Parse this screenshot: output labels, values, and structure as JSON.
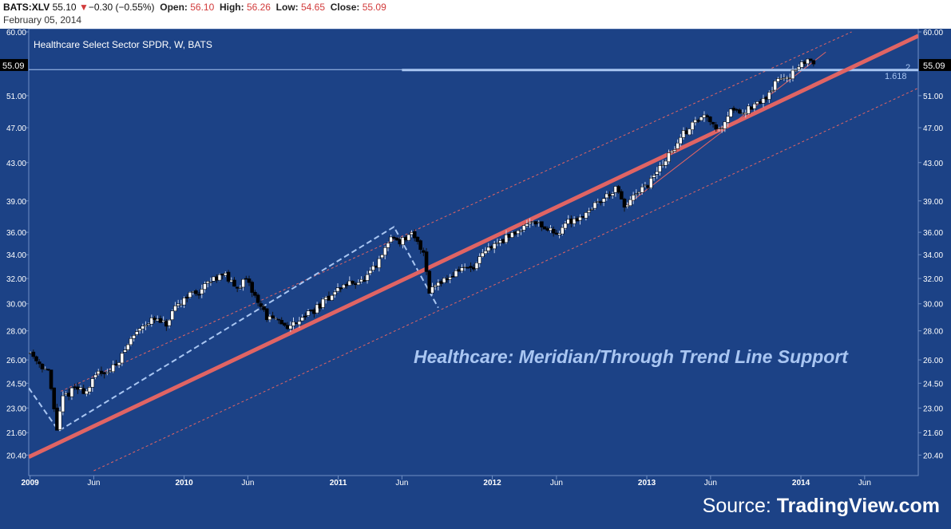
{
  "header": {
    "symbol": "BATS:XLV",
    "last": "55.10",
    "arrow": "▼",
    "change": "−0.30 (−0.55%)",
    "open_label": "Open:",
    "open": "56.10",
    "high_label": "High:",
    "high": "56.26",
    "low_label": "Low:",
    "low": "54.65",
    "close_label": "Close:",
    "close": "55.09",
    "date": "February 05, 2014"
  },
  "source": {
    "prefix": "Source:",
    "brand": "TradingView.com"
  },
  "colors": {
    "background": "#1c4286",
    "candle_up": "#ffffff",
    "candle_down": "#000000",
    "trend_line": "#e06464",
    "channel_line": "#e06464",
    "fib_line": "#a9c6f2",
    "annotation": "#a9c6f2",
    "price_tag_bg": "#000000"
  },
  "chart_data": {
    "type": "candlestick",
    "title": "Healthcare Select Sector SPDR, W, BATS",
    "annotation": "Healthcare: Meridian/Through Trend Line Support",
    "y_scale": "log",
    "ylim": [
      19.6,
      60.0
    ],
    "y_ticks": [
      "60.00",
      "51.00",
      "47.00",
      "43.00",
      "39.00",
      "36.00",
      "34.00",
      "32.00",
      "30.00",
      "28.00",
      "26.00",
      "24.50",
      "23.00",
      "21.60",
      "20.40"
    ],
    "x_range": [
      "2008-12-29",
      "2014-10-06"
    ],
    "x_ticks": [
      {
        "label": "2009",
        "date": "2009-01-01",
        "major": true
      },
      {
        "label": "Jun",
        "date": "2009-06-01",
        "major": false
      },
      {
        "label": "2010",
        "date": "2010-01-01",
        "major": true
      },
      {
        "label": "Jun",
        "date": "2010-06-01",
        "major": false
      },
      {
        "label": "2011",
        "date": "2011-01-01",
        "major": true
      },
      {
        "label": "Jun",
        "date": "2011-06-01",
        "major": false
      },
      {
        "label": "2012",
        "date": "2012-01-01",
        "major": true
      },
      {
        "label": "Jun",
        "date": "2012-06-01",
        "major": false
      },
      {
        "label": "2013",
        "date": "2013-01-01",
        "major": true
      },
      {
        "label": "Jun",
        "date": "2013-06-01",
        "major": false
      },
      {
        "label": "2014",
        "date": "2014-01-01",
        "major": true
      },
      {
        "label": "Jun",
        "date": "2014-06-01",
        "major": false
      }
    ],
    "last_price_label": "55.09",
    "fib_level": {
      "label": "1.618",
      "tag": "2",
      "price": 54.5,
      "from": "2011-06-01"
    },
    "price_path": [
      [
        "2009-01-02",
        26.5
      ],
      [
        "2009-01-23",
        25.8
      ],
      [
        "2009-02-13",
        25.2
      ],
      [
        "2009-03-06",
        21.8
      ],
      [
        "2009-03-20",
        23.6
      ],
      [
        "2009-04-17",
        24.2
      ],
      [
        "2009-05-15",
        24.0
      ],
      [
        "2009-06-12",
        25.2
      ],
      [
        "2009-07-10",
        25.3
      ],
      [
        "2009-08-07",
        26.3
      ],
      [
        "2009-08-28",
        27.4
      ],
      [
        "2009-09-25",
        28.5
      ],
      [
        "2009-10-23",
        28.8
      ],
      [
        "2009-11-20",
        28.4
      ],
      [
        "2009-12-11",
        29.6
      ],
      [
        "2010-01-08",
        30.7
      ],
      [
        "2010-02-05",
        30.9
      ],
      [
        "2010-03-05",
        31.8
      ],
      [
        "2010-04-02",
        32.5
      ],
      [
        "2010-04-30",
        31.3
      ],
      [
        "2010-05-28",
        31.8
      ],
      [
        "2010-06-25",
        30.2
      ],
      [
        "2010-07-16",
        29.0
      ],
      [
        "2010-08-13",
        28.6
      ],
      [
        "2010-09-10",
        28.3
      ],
      [
        "2010-10-08",
        29.1
      ],
      [
        "2010-11-05",
        29.5
      ],
      [
        "2010-12-03",
        30.3
      ],
      [
        "2011-01-07",
        31.3
      ],
      [
        "2011-02-04",
        31.7
      ],
      [
        "2011-03-04",
        31.8
      ],
      [
        "2011-04-08",
        33.4
      ],
      [
        "2011-05-06",
        35.6
      ],
      [
        "2011-05-27",
        35.2
      ],
      [
        "2011-06-24",
        35.7
      ],
      [
        "2011-07-22",
        34.3
      ],
      [
        "2011-08-05",
        31.0
      ],
      [
        "2011-08-26",
        31.8
      ],
      [
        "2011-09-23",
        32.1
      ],
      [
        "2011-10-21",
        32.9
      ],
      [
        "2011-11-18",
        32.8
      ],
      [
        "2011-12-16",
        34.3
      ],
      [
        "2012-01-13",
        35.1
      ],
      [
        "2012-02-10",
        35.6
      ],
      [
        "2012-03-09",
        36.4
      ],
      [
        "2012-04-06",
        37.2
      ],
      [
        "2012-05-04",
        36.4
      ],
      [
        "2012-06-01",
        35.9
      ],
      [
        "2012-06-29",
        37.0
      ],
      [
        "2012-07-27",
        37.4
      ],
      [
        "2012-08-24",
        38.4
      ],
      [
        "2012-09-21",
        39.3
      ],
      [
        "2012-10-19",
        40.2
      ],
      [
        "2012-11-09",
        38.4
      ],
      [
        "2012-12-07",
        39.6
      ],
      [
        "2013-01-04",
        40.6
      ],
      [
        "2013-02-01",
        42.5
      ],
      [
        "2013-03-01",
        44.2
      ],
      [
        "2013-03-29",
        46.3
      ],
      [
        "2013-04-26",
        47.8
      ],
      [
        "2013-05-24",
        48.6
      ],
      [
        "2013-06-21",
        46.6
      ],
      [
        "2013-07-19",
        49.3
      ],
      [
        "2013-08-16",
        49.0
      ],
      [
        "2013-09-13",
        49.6
      ],
      [
        "2013-10-11",
        50.8
      ],
      [
        "2013-11-08",
        53.2
      ],
      [
        "2013-12-06",
        53.8
      ],
      [
        "2013-12-27",
        54.6
      ],
      [
        "2014-01-17",
        56.1
      ],
      [
        "2014-02-05",
        55.1
      ]
    ],
    "trend_line": {
      "start": [
        "2008-12-29",
        20.3
      ],
      "end": [
        "2014-10-06",
        59.4
      ]
    },
    "channel_upper": {
      "start": [
        "2009-03-15",
        24.0
      ],
      "end": [
        "2014-05-01",
        60.0
      ]
    },
    "channel_lower": {
      "start": [
        "2009-06-01",
        19.6
      ],
      "end": [
        "2014-10-06",
        52.0
      ]
    },
    "steep_line": {
      "start": [
        "2012-11-15",
        38.6
      ],
      "end": [
        "2014-03-01",
        57.0
      ]
    },
    "zigzag": [
      [
        "2008-12-29",
        24.2
      ],
      [
        "2009-03-10",
        21.7
      ],
      [
        "2011-05-13",
        36.5
      ],
      [
        "2011-08-26",
        29.7
      ]
    ]
  }
}
